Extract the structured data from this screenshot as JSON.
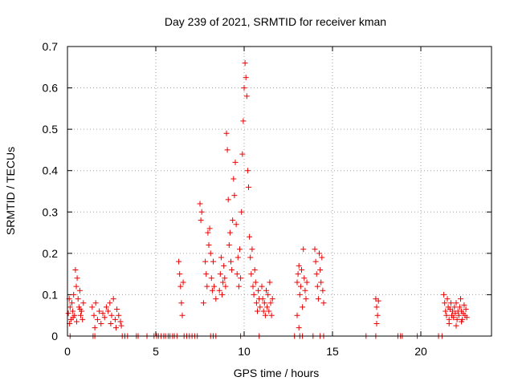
{
  "chart_data": {
    "type": "scatter",
    "title": "Day 239 of 2021, SRMTID for receiver kman",
    "xlabel": "GPS time / hours",
    "ylabel": "SRMTID / TECUs",
    "xlim": [
      0,
      24
    ],
    "ylim": [
      0,
      0.7
    ],
    "xticks": [
      "0",
      "5",
      "10",
      "15",
      "20"
    ],
    "yticks": [
      "0",
      "0.1",
      "0.2",
      "0.3",
      "0.4",
      "0.5",
      "0.6",
      "0.7"
    ],
    "grid": true,
    "marker": "+",
    "colors": {
      "points": "#ee0000",
      "grid": "#a0a0a0",
      "axes": "#000000"
    },
    "series": [
      {
        "name": "SRMTID",
        "points": [
          [
            0.05,
            0.055
          ],
          [
            0.1,
            0.09
          ],
          [
            0.15,
            0.07
          ],
          [
            0.2,
            0.04
          ],
          [
            0.25,
            0.08
          ],
          [
            0.3,
            0.06
          ],
          [
            0.35,
            0.1
          ],
          [
            0.4,
            0.05
          ],
          [
            0.45,
            0.16
          ],
          [
            0.5,
            0.12
          ],
          [
            0.55,
            0.14
          ],
          [
            0.6,
            0.09
          ],
          [
            0.65,
            0.07
          ],
          [
            0.7,
            0.11
          ],
          [
            0.75,
            0.05
          ],
          [
            0.8,
            0.06
          ],
          [
            0.85,
            0.04
          ],
          [
            0.9,
            0.08
          ],
          [
            0.12,
            0.03
          ],
          [
            0.32,
            0.045
          ],
          [
            0.52,
            0.035
          ],
          [
            0.72,
            0.065
          ],
          [
            1.4,
            0.07
          ],
          [
            1.5,
            0.05
          ],
          [
            1.6,
            0.08
          ],
          [
            1.7,
            0.04
          ],
          [
            1.8,
            0.06
          ],
          [
            1.9,
            0.03
          ],
          [
            2.0,
            0.055
          ],
          [
            2.1,
            0.045
          ],
          [
            2.2,
            0.07
          ],
          [
            2.3,
            0.06
          ],
          [
            2.4,
            0.08
          ],
          [
            2.5,
            0.05
          ],
          [
            2.6,
            0.09
          ],
          [
            2.7,
            0.04
          ],
          [
            2.8,
            0.065
          ],
          [
            2.9,
            0.05
          ],
          [
            3.0,
            0.035
          ],
          [
            3.05,
            0.025
          ],
          [
            1.55,
            0.02
          ],
          [
            2.45,
            0.03
          ],
          [
            2.75,
            0.02
          ],
          [
            6.3,
            0.18
          ],
          [
            6.35,
            0.15
          ],
          [
            6.4,
            0.12
          ],
          [
            6.45,
            0.08
          ],
          [
            6.5,
            0.05
          ],
          [
            6.55,
            0.13
          ],
          [
            7.5,
            0.32
          ],
          [
            7.55,
            0.28
          ],
          [
            7.6,
            0.3
          ],
          [
            7.8,
            0.18
          ],
          [
            7.85,
            0.15
          ],
          [
            7.9,
            0.12
          ],
          [
            7.95,
            0.25
          ],
          [
            8.0,
            0.22
          ],
          [
            8.05,
            0.26
          ],
          [
            8.1,
            0.2
          ],
          [
            8.15,
            0.14
          ],
          [
            8.2,
            0.11
          ],
          [
            8.25,
            0.18
          ],
          [
            8.3,
            0.12
          ],
          [
            8.4,
            0.09
          ],
          [
            7.7,
            0.08
          ],
          [
            8.6,
            0.11
          ],
          [
            8.65,
            0.15
          ],
          [
            8.7,
            0.19
          ],
          [
            8.75,
            0.1
          ],
          [
            8.8,
            0.13
          ],
          [
            8.85,
            0.17
          ],
          [
            8.9,
            0.14
          ],
          [
            8.95,
            0.12
          ],
          [
            9.0,
            0.49
          ],
          [
            9.05,
            0.45
          ],
          [
            9.1,
            0.33
          ],
          [
            9.15,
            0.22
          ],
          [
            9.2,
            0.25
          ],
          [
            9.25,
            0.18
          ],
          [
            9.3,
            0.16
          ],
          [
            9.35,
            0.28
          ],
          [
            9.4,
            0.38
          ],
          [
            9.45,
            0.34
          ],
          [
            9.5,
            0.42
          ],
          [
            9.55,
            0.27
          ],
          [
            9.6,
            0.15
          ],
          [
            9.65,
            0.19
          ],
          [
            9.7,
            0.12
          ],
          [
            9.75,
            0.21
          ],
          [
            9.8,
            0.14
          ],
          [
            9.85,
            0.3
          ],
          [
            9.9,
            0.44
          ],
          [
            9.95,
            0.52
          ],
          [
            10.0,
            0.6
          ],
          [
            10.05,
            0.66
          ],
          [
            10.1,
            0.625
          ],
          [
            10.15,
            0.58
          ],
          [
            10.2,
            0.4
          ],
          [
            10.25,
            0.36
          ],
          [
            10.3,
            0.24
          ],
          [
            10.35,
            0.19
          ],
          [
            10.4,
            0.15
          ],
          [
            10.45,
            0.21
          ],
          [
            10.5,
            0.12
          ],
          [
            10.55,
            0.1
          ],
          [
            10.6,
            0.16
          ],
          [
            10.65,
            0.13
          ],
          [
            10.7,
            0.08
          ],
          [
            10.75,
            0.06
          ],
          [
            10.8,
            0.11
          ],
          [
            10.85,
            0.09
          ],
          [
            10.9,
            0.07
          ],
          [
            11.0,
            0.12
          ],
          [
            11.05,
            0.09
          ],
          [
            11.1,
            0.06
          ],
          [
            11.15,
            0.08
          ],
          [
            11.2,
            0.05
          ],
          [
            11.25,
            0.11
          ],
          [
            11.3,
            0.07
          ],
          [
            11.35,
            0.1
          ],
          [
            11.4,
            0.06
          ],
          [
            11.45,
            0.13
          ],
          [
            11.5,
            0.08
          ],
          [
            11.55,
            0.05
          ],
          [
            11.6,
            0.09
          ],
          [
            13.0,
            0.13
          ],
          [
            13.05,
            0.15
          ],
          [
            13.1,
            0.17
          ],
          [
            13.15,
            0.1
          ],
          [
            13.2,
            0.12
          ],
          [
            13.25,
            0.16
          ],
          [
            13.3,
            0.07
          ],
          [
            13.35,
            0.21
          ],
          [
            13.4,
            0.14
          ],
          [
            13.45,
            0.11
          ],
          [
            13.5,
            0.09
          ],
          [
            13.55,
            0.13
          ],
          [
            13.0,
            0.05
          ],
          [
            13.1,
            0.02
          ],
          [
            14.0,
            0.21
          ],
          [
            14.05,
            0.18
          ],
          [
            14.1,
            0.15
          ],
          [
            14.15,
            0.12
          ],
          [
            14.2,
            0.09
          ],
          [
            14.25,
            0.2
          ],
          [
            14.3,
            0.16
          ],
          [
            14.35,
            0.13
          ],
          [
            14.4,
            0.19
          ],
          [
            14.45,
            0.11
          ],
          [
            14.5,
            0.08
          ],
          [
            17.45,
            0.09
          ],
          [
            17.5,
            0.07
          ],
          [
            17.55,
            0.05
          ],
          [
            17.6,
            0.085
          ],
          [
            17.5,
            0.03
          ],
          [
            21.3,
            0.1
          ],
          [
            21.35,
            0.08
          ],
          [
            21.4,
            0.06
          ],
          [
            21.45,
            0.05
          ],
          [
            21.5,
            0.09
          ],
          [
            21.55,
            0.07
          ],
          [
            21.6,
            0.04
          ],
          [
            21.65,
            0.065
          ],
          [
            21.7,
            0.08
          ],
          [
            21.75,
            0.05
          ],
          [
            21.8,
            0.06
          ],
          [
            21.85,
            0.045
          ],
          [
            21.9,
            0.07
          ],
          [
            21.95,
            0.055
          ],
          [
            22.0,
            0.08
          ],
          [
            22.05,
            0.04
          ],
          [
            22.1,
            0.06
          ],
          [
            22.15,
            0.05
          ],
          [
            22.2,
            0.07
          ],
          [
            22.25,
            0.09
          ],
          [
            22.3,
            0.06
          ],
          [
            22.35,
            0.04
          ],
          [
            22.4,
            0.055
          ],
          [
            22.45,
            0.075
          ],
          [
            22.5,
            0.05
          ],
          [
            22.55,
            0.065
          ],
          [
            22.6,
            0.045
          ],
          [
            21.6,
            0.03
          ],
          [
            22.0,
            0.025
          ],
          [
            22.3,
            0.035
          ],
          [
            0.15,
            0
          ],
          [
            1.45,
            0
          ],
          [
            1.55,
            0
          ],
          [
            3.1,
            0
          ],
          [
            3.25,
            0
          ],
          [
            3.4,
            0
          ],
          [
            3.9,
            0
          ],
          [
            4.0,
            0
          ],
          [
            4.5,
            0
          ],
          [
            4.9,
            0
          ],
          [
            5.05,
            0
          ],
          [
            5.15,
            0
          ],
          [
            5.3,
            0
          ],
          [
            5.45,
            0
          ],
          [
            5.55,
            0
          ],
          [
            5.7,
            0
          ],
          [
            5.8,
            0
          ],
          [
            5.95,
            0
          ],
          [
            6.05,
            0
          ],
          [
            6.2,
            0
          ],
          [
            6.6,
            0
          ],
          [
            6.75,
            0
          ],
          [
            6.9,
            0
          ],
          [
            7.05,
            0
          ],
          [
            7.2,
            0
          ],
          [
            7.35,
            0
          ],
          [
            8.1,
            0
          ],
          [
            8.25,
            0
          ],
          [
            8.4,
            0
          ],
          [
            9.8,
            0
          ],
          [
            10.85,
            0
          ],
          [
            12.85,
            0
          ],
          [
            13.15,
            0
          ],
          [
            13.3,
            0
          ],
          [
            13.9,
            0
          ],
          [
            14.3,
            0
          ],
          [
            14.5,
            0
          ],
          [
            16.9,
            0
          ],
          [
            17.45,
            0
          ],
          [
            18.7,
            0
          ],
          [
            18.85,
            0
          ],
          [
            18.95,
            0
          ],
          [
            19.8,
            0
          ],
          [
            21.0,
            0
          ],
          [
            21.2,
            0
          ]
        ]
      }
    ]
  }
}
